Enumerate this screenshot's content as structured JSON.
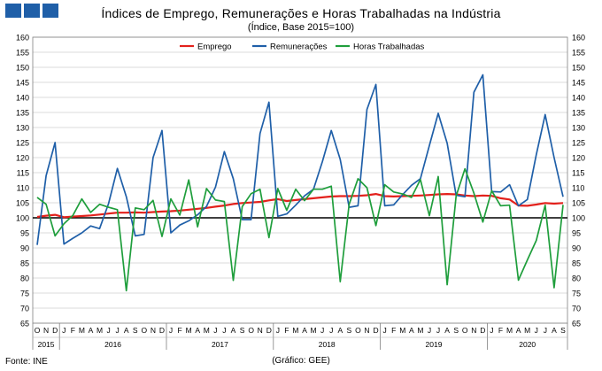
{
  "title": "Índices de Emprego, Remunerações e Horas Trabalhadas na Indústria",
  "subtitle": "(Índice, Base 2015=100)",
  "source": "Fonte: INE",
  "credit": "(Gráfico: GEE)",
  "chart_data": {
    "type": "line",
    "ylim": [
      65,
      160
    ],
    "y_ticks": [
      65,
      70,
      75,
      80,
      85,
      90,
      95,
      100,
      105,
      110,
      115,
      120,
      125,
      130,
      135,
      140,
      145,
      150,
      155,
      160
    ],
    "reference_line": 100,
    "grid": "horizontal",
    "legend_position": "top",
    "x": [
      "O",
      "N",
      "D",
      "J",
      "F",
      "M",
      "A",
      "M",
      "J",
      "J",
      "A",
      "S",
      "O",
      "N",
      "D",
      "J",
      "F",
      "M",
      "A",
      "M",
      "J",
      "J",
      "A",
      "S",
      "O",
      "N",
      "D",
      "J",
      "F",
      "M",
      "A",
      "M",
      "J",
      "J",
      "A",
      "S",
      "O",
      "N",
      "D",
      "J",
      "F",
      "M",
      "A",
      "M",
      "J",
      "J",
      "A",
      "S",
      "O",
      "N",
      "D",
      "J",
      "F",
      "M",
      "A",
      "M",
      "J",
      "J",
      "A",
      "S"
    ],
    "years": [
      {
        "label": "2015",
        "start": 0,
        "count": 3
      },
      {
        "label": "2016",
        "start": 3,
        "count": 12
      },
      {
        "label": "2017",
        "start": 15,
        "count": 12
      },
      {
        "label": "2018",
        "start": 27,
        "count": 12
      },
      {
        "label": "2019",
        "start": 39,
        "count": 12
      },
      {
        "label": "2020",
        "start": 51,
        "count": 9
      }
    ],
    "series": [
      {
        "name": "Emprego",
        "color": "#e3211c",
        "values": [
          100.3,
          100.7,
          101.0,
          100.2,
          100.4,
          100.6,
          100.8,
          101.1,
          101.4,
          101.7,
          101.7,
          101.8,
          101.7,
          101.9,
          102.1,
          102.2,
          102.4,
          102.7,
          103.0,
          103.3,
          103.7,
          104.1,
          104.6,
          104.9,
          105.1,
          105.3,
          105.8,
          106.2,
          105.6,
          105.9,
          106.2,
          106.5,
          106.8,
          107.1,
          107.2,
          107.2,
          107.3,
          107.5,
          107.9,
          107.2,
          107.1,
          107.2,
          107.3,
          107.4,
          107.6,
          107.8,
          107.9,
          107.8,
          107.4,
          107.2,
          107.4,
          107.3,
          106.5,
          106.1,
          104.1,
          104.0,
          104.4,
          104.9,
          104.7,
          104.9
        ]
      },
      {
        "name": "Remunerações",
        "color": "#1f5fa8",
        "values": [
          91.0,
          114.0,
          125.0,
          91.3,
          93.2,
          95.0,
          97.3,
          96.4,
          104.7,
          116.4,
          107.0,
          94.0,
          94.5,
          120.0,
          129.0,
          95.0,
          97.6,
          99.0,
          101.0,
          103.8,
          110.2,
          122.0,
          113.0,
          99.4,
          99.4,
          128.0,
          138.4,
          100.5,
          101.3,
          104.2,
          107.3,
          109.5,
          118.7,
          129.0,
          119.4,
          103.5,
          104.0,
          136.0,
          144.3,
          104.0,
          104.3,
          107.7,
          110.8,
          113.0,
          124.0,
          134.7,
          124.8,
          107.5,
          107.0,
          141.7,
          147.5,
          108.7,
          108.6,
          111.0,
          104.0,
          106.1,
          121.0,
          134.3,
          120.0,
          107.0
        ]
      },
      {
        "name": "Horas Trabalhadas",
        "color": "#1f9e3c",
        "values": [
          106.8,
          104.5,
          94.0,
          98.0,
          100.8,
          106.3,
          101.8,
          104.5,
          103.5,
          102.7,
          75.8,
          103.3,
          102.7,
          105.8,
          93.8,
          106.3,
          100.9,
          112.6,
          97.0,
          109.7,
          105.9,
          105.4,
          79.2,
          103.7,
          108.0,
          109.5,
          93.4,
          109.7,
          102.5,
          109.5,
          105.7,
          109.5,
          109.5,
          110.5,
          78.8,
          104.5,
          113.0,
          110.0,
          97.4,
          111.0,
          108.6,
          107.9,
          106.8,
          112.7,
          100.7,
          113.7,
          77.8,
          107.2,
          116.3,
          108.2,
          98.6,
          109.0,
          104.0,
          104.2,
          79.3,
          86.0,
          92.5,
          104.2,
          76.8,
          104.3
        ]
      }
    ]
  }
}
